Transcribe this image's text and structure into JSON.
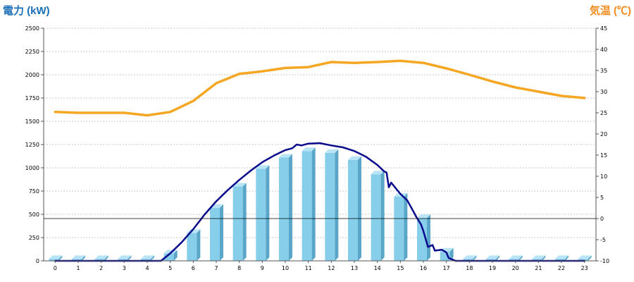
{
  "chart_data": {
    "type": "bar",
    "y_left_label": "電力 (kW)",
    "y_right_label": "気温 (℃)",
    "categories": [
      "0",
      "1",
      "2",
      "3",
      "4",
      "5",
      "6",
      "7",
      "8",
      "9",
      "10",
      "11",
      "12",
      "13",
      "14",
      "15",
      "16",
      "17",
      "18",
      "19",
      "20",
      "21",
      "22",
      "23"
    ],
    "y_left_ticks": [
      "0",
      "250",
      "500",
      "750",
      "1000",
      "1250",
      "1500",
      "1750",
      "2000",
      "2250",
      "2500"
    ],
    "y_right_ticks": [
      "-10",
      "-5",
      "0",
      "5",
      "10",
      "15",
      "20",
      "25",
      "30",
      "35",
      "40",
      "45"
    ],
    "ylim_left": [
      0,
      2500
    ],
    "ylim_right": [
      -10,
      45
    ],
    "grid": true,
    "colors": {
      "bars": "#87ceeb",
      "bars_side": "#5aa6c8",
      "bars_top": "#b8e4f5",
      "power_line": "#0a0a8c",
      "temp_line": "#f5a623",
      "left_title": "#1a6fb7",
      "right_title": "#f28c1e"
    },
    "series": [
      {
        "type": "bar",
        "axis": "left",
        "values": [
          20,
          20,
          20,
          20,
          20,
          80,
          300,
          570,
          800,
          990,
          1110,
          1180,
          1160,
          1085,
          930,
          690,
          460,
          100,
          20,
          20,
          20,
          20,
          20,
          20
        ]
      },
      {
        "type": "line",
        "axis": "left",
        "points": [
          [
            0,
            0
          ],
          [
            1,
            0
          ],
          [
            2,
            0
          ],
          [
            3,
            0
          ],
          [
            4,
            0
          ],
          [
            4.6,
            0
          ],
          [
            5,
            80
          ],
          [
            5.5,
            200
          ],
          [
            6,
            340
          ],
          [
            6.5,
            500
          ],
          [
            7,
            640
          ],
          [
            7.5,
            760
          ],
          [
            8,
            870
          ],
          [
            8.5,
            970
          ],
          [
            9,
            1060
          ],
          [
            9.5,
            1130
          ],
          [
            10,
            1190
          ],
          [
            10.3,
            1210
          ],
          [
            10.5,
            1250
          ],
          [
            10.7,
            1240
          ],
          [
            11,
            1260
          ],
          [
            11.5,
            1265
          ],
          [
            12,
            1240
          ],
          [
            12.5,
            1220
          ],
          [
            13,
            1180
          ],
          [
            13.5,
            1120
          ],
          [
            14,
            1030
          ],
          [
            14.3,
            960
          ],
          [
            14.4,
            950
          ],
          [
            14.5,
            790
          ],
          [
            14.6,
            840
          ],
          [
            15,
            720
          ],
          [
            15.3,
            650
          ],
          [
            15.5,
            560
          ],
          [
            15.7,
            470
          ],
          [
            15.9,
            390
          ],
          [
            16,
            320
          ],
          [
            16.2,
            150
          ],
          [
            16.4,
            170
          ],
          [
            16.5,
            110
          ],
          [
            16.8,
            120
          ],
          [
            17,
            90
          ],
          [
            17.1,
            30
          ],
          [
            17.3,
            10
          ],
          [
            17.4,
            0
          ],
          [
            18,
            0
          ],
          [
            19,
            0
          ],
          [
            20,
            0
          ],
          [
            21,
            0
          ],
          [
            22,
            0
          ],
          [
            23,
            0
          ]
        ]
      },
      {
        "type": "line",
        "axis": "right",
        "points": [
          [
            0,
            25.2
          ],
          [
            1,
            25
          ],
          [
            2,
            25
          ],
          [
            3,
            25
          ],
          [
            4,
            24.4
          ],
          [
            5,
            25.2
          ],
          [
            6,
            27.8
          ],
          [
            7,
            32
          ],
          [
            8,
            34.2
          ],
          [
            9,
            34.8
          ],
          [
            10,
            35.6
          ],
          [
            11,
            35.8
          ],
          [
            12,
            37
          ],
          [
            13,
            36.8
          ],
          [
            14,
            37
          ],
          [
            15,
            37.3
          ],
          [
            16,
            36.8
          ],
          [
            17,
            35.5
          ],
          [
            18,
            34
          ],
          [
            19,
            32.4
          ],
          [
            20,
            31
          ],
          [
            21,
            30
          ],
          [
            22,
            29
          ],
          [
            23,
            28.5
          ]
        ]
      }
    ]
  }
}
